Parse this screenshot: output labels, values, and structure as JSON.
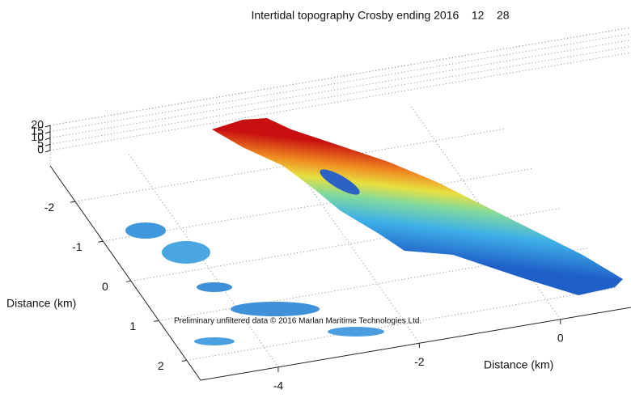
{
  "chart_data": {
    "type": "surface3d",
    "title": "Intertidal topography Crosby ending 2016    12    28",
    "xlabel": "Distance (km)",
    "ylabel": "Distance (km)",
    "xlim": [
      -2.9,
      2.5
    ],
    "xticks": [
      -2,
      -1,
      0,
      1,
      2
    ],
    "ylim": [
      -5.1,
      1.0
    ],
    "yticks": [
      -4,
      -2,
      0
    ],
    "zlim": [
      0,
      20
    ],
    "zticks": [
      0,
      5,
      10,
      15,
      20
    ],
    "grid": true,
    "annotation": "Preliminary unfiltered data © 2016 Marlan Maritime Technologies Ltd."
  }
}
